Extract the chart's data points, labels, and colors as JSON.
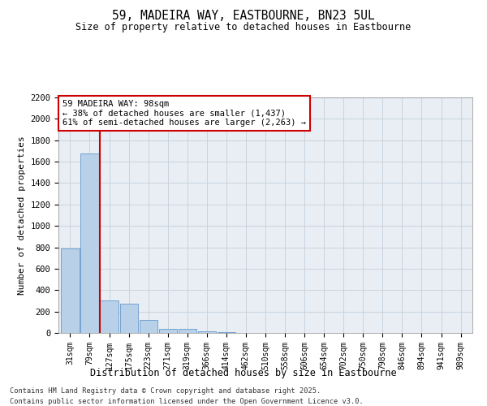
{
  "title_line1": "59, MADEIRA WAY, EASTBOURNE, BN23 5UL",
  "title_line2": "Size of property relative to detached houses in Eastbourne",
  "xlabel": "Distribution of detached houses by size in Eastbourne",
  "ylabel": "Number of detached properties",
  "categories": [
    "31sqm",
    "79sqm",
    "127sqm",
    "175sqm",
    "223sqm",
    "271sqm",
    "319sqm",
    "366sqm",
    "414sqm",
    "462sqm",
    "510sqm",
    "558sqm",
    "606sqm",
    "654sqm",
    "702sqm",
    "750sqm",
    "798sqm",
    "846sqm",
    "894sqm",
    "941sqm",
    "989sqm"
  ],
  "values": [
    790,
    1680,
    305,
    270,
    120,
    40,
    40,
    15,
    5,
    2,
    0,
    0,
    0,
    0,
    0,
    0,
    0,
    0,
    0,
    0,
    0
  ],
  "bar_color": "#b8d0e8",
  "bar_edge_color": "#6699cc",
  "vline_x": 1.5,
  "vline_color": "#cc0000",
  "annotation_text": "59 MADEIRA WAY: 98sqm\n← 38% of detached houses are smaller (1,437)\n61% of semi-detached houses are larger (2,263) →",
  "annotation_box_color": "#cc0000",
  "ylim": [
    0,
    2200
  ],
  "yticks": [
    0,
    200,
    400,
    600,
    800,
    1000,
    1200,
    1400,
    1600,
    1800,
    2000,
    2200
  ],
  "grid_color": "#c8d4e0",
  "bg_color": "#e8eef4",
  "footer_line1": "Contains HM Land Registry data © Crown copyright and database right 2025.",
  "footer_line2": "Contains public sector information licensed under the Open Government Licence v3.0."
}
